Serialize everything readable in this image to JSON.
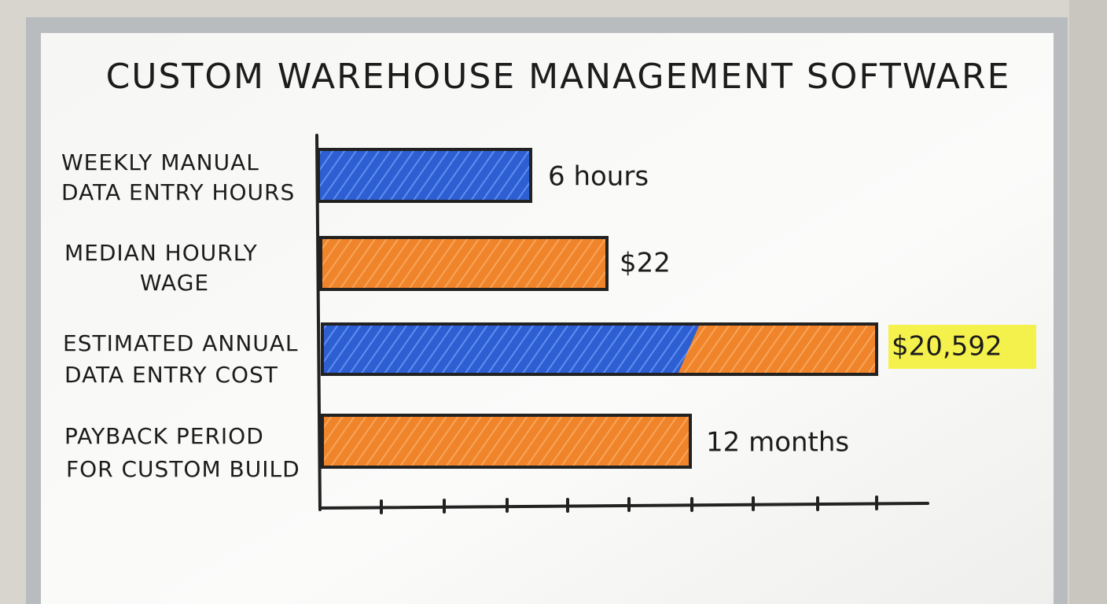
{
  "title": "CUSTOM WAREHOUSE MANAGEMENT SOFTWARE",
  "rows": [
    {
      "label": [
        "WEEKLY MANUAL",
        "DATA ENTRY HOURS"
      ],
      "value_text": "6 hours"
    },
    {
      "label": [
        "MEDIAN HOURLY",
        "WAGE"
      ],
      "value_text": "$22"
    },
    {
      "label": [
        "ESTIMATED ANNUAL",
        "DATA ENTRY COST"
      ],
      "value_text": "$20,592"
    },
    {
      "label": [
        "PAYBACK PERIOD",
        "FOR CUSTOM BUILD"
      ],
      "value_text": "12 months"
    }
  ]
}
